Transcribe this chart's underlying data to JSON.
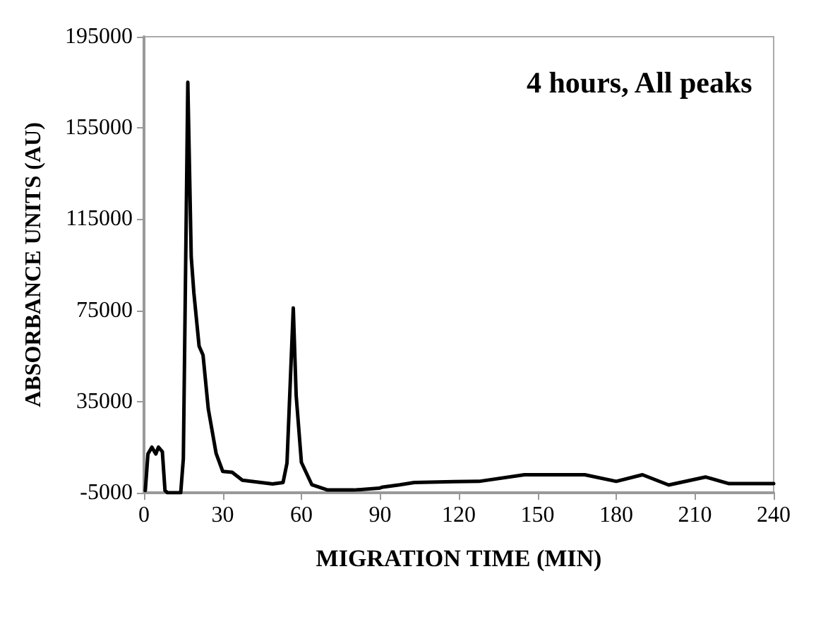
{
  "chart_data": {
    "type": "line",
    "xlabel": "MIGRATION TIME (MIN)",
    "ylabel": "ABSORBANCE UNITS (AU)",
    "annotations": [
      "4 hours, All peaks"
    ],
    "xlim": [
      0,
      240
    ],
    "xticks": [
      0,
      30,
      60,
      90,
      120,
      150,
      180,
      210,
      240
    ],
    "ylim": [
      -5000,
      195000
    ],
    "yticks": [
      -5000,
      35000,
      75000,
      115000,
      155000,
      195000
    ],
    "grid": false,
    "marker": "none",
    "line_style": "solid",
    "series": [
      {
        "color": "#000000",
        "x": [
          0.5,
          1.5,
          3,
          4.5,
          5.5,
          7,
          8,
          9,
          14,
          15,
          16.7,
          18,
          19,
          21,
          22.5,
          24.5,
          27.5,
          30,
          33.6,
          37.5,
          49,
          53,
          54.5,
          56.9,
          58,
          60,
          64,
          70,
          80,
          89.6,
          91,
          97.5,
          103,
          118,
          127.7,
          145,
          168,
          180,
          190,
          200,
          214,
          223,
          240
        ],
        "values": [
          -4000,
          12000,
          15000,
          12000,
          15000,
          13000,
          -4000,
          -5000,
          -5000,
          10000,
          175000,
          98500,
          82800,
          59300,
          55400,
          31800,
          12200,
          4400,
          4000,
          500,
          -1100,
          -500,
          8000,
          76000,
          37700,
          8300,
          -1500,
          -3800,
          -3800,
          -3000,
          -2500,
          -1500,
          -500,
          -100,
          0,
          2900,
          2900,
          0,
          2900,
          -1600,
          1900,
          -1000,
          -1000
        ]
      }
    ]
  }
}
